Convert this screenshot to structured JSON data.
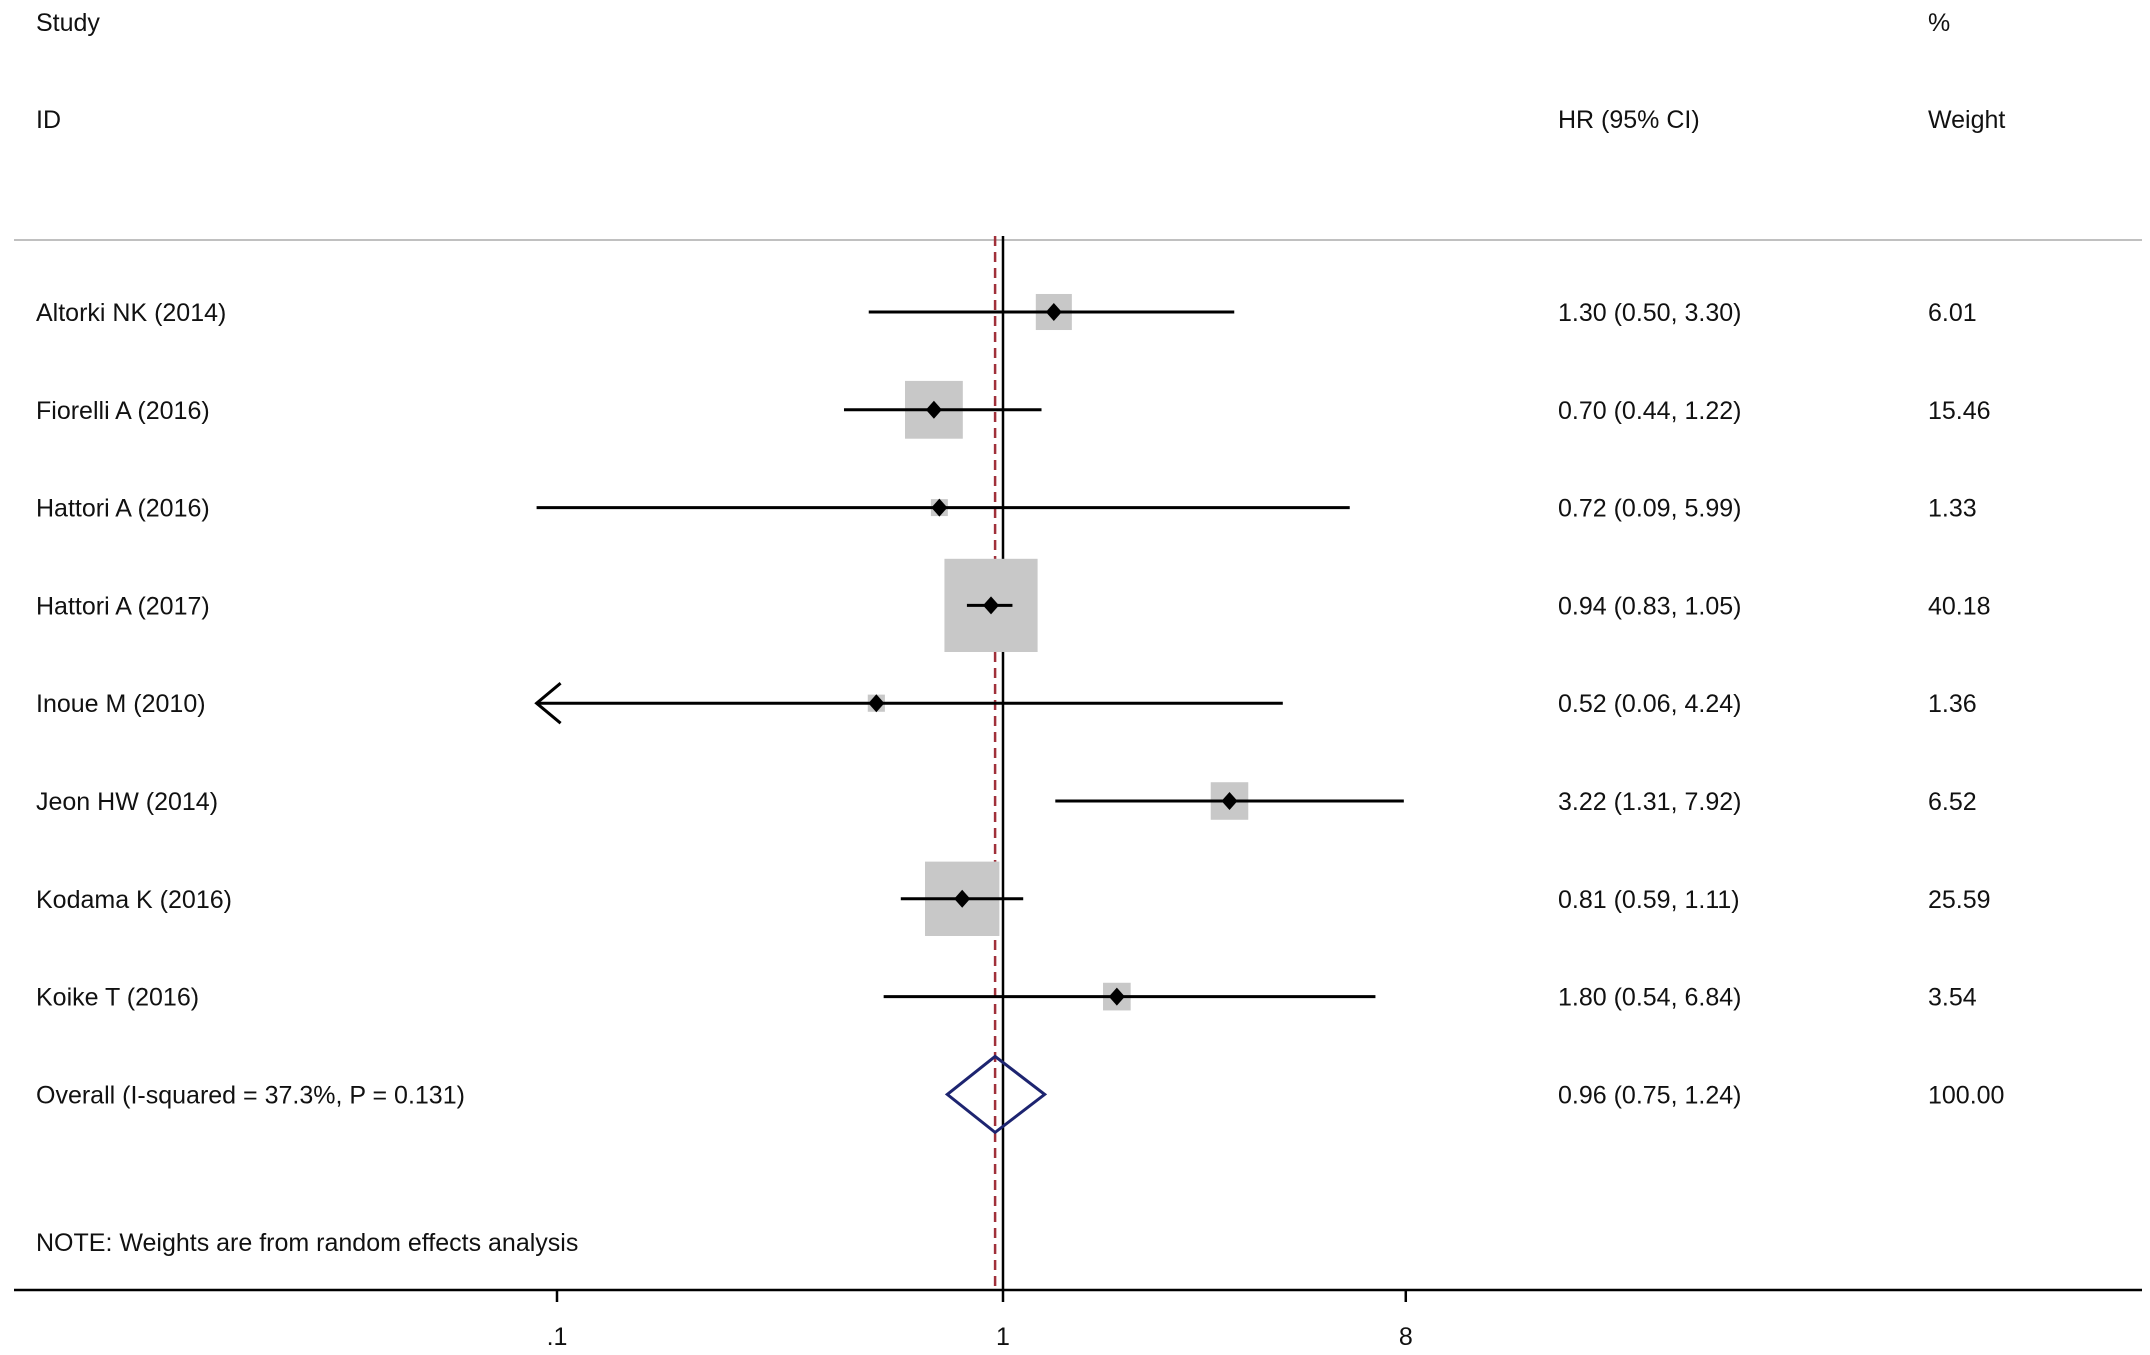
{
  "colors": {
    "text": "#111111",
    "ci_line": "#000000",
    "weight_box": "#c8c8c8",
    "point": "#000000",
    "null_line": "#000000",
    "overall_ref_line": "#a0303a",
    "diamond": "#1d2470",
    "separator": "#c0c0c0"
  },
  "chart_data": {
    "type": "forest",
    "x_scale": "log",
    "null_value": 1,
    "x_ticks": [
      ".1",
      "1",
      "8"
    ],
    "x_tick_values": [
      0.1,
      1,
      8
    ],
    "xlim": [
      0.09,
      8
    ],
    "header": {
      "col_study_line1": "Study",
      "col_study_line2": "ID",
      "col_hr": "HR (95% CI)",
      "col_weight_line1": "%",
      "col_weight_line2": "Weight"
    },
    "studies": [
      {
        "label": "Altorki NK (2014)",
        "hr": 1.3,
        "lo": 0.5,
        "hi": 3.3,
        "hr_text": "1.30 (0.50, 3.30)",
        "weight": 6.01,
        "weight_text": "6.01"
      },
      {
        "label": "Fiorelli A (2016)",
        "hr": 0.7,
        "lo": 0.44,
        "hi": 1.22,
        "hr_text": "0.70 (0.44, 1.22)",
        "weight": 15.46,
        "weight_text": "15.46"
      },
      {
        "label": "Hattori A (2016)",
        "hr": 0.72,
        "lo": 0.09,
        "hi": 5.99,
        "hr_text": "0.72 (0.09, 5.99)",
        "weight": 1.33,
        "weight_text": "1.33"
      },
      {
        "label": "Hattori A (2017)",
        "hr": 0.94,
        "lo": 0.83,
        "hi": 1.05,
        "hr_text": "0.94 (0.83, 1.05)",
        "weight": 40.18,
        "weight_text": "40.18"
      },
      {
        "label": "Inoue M  (2010)",
        "hr": 0.52,
        "lo": 0.06,
        "hi": 4.24,
        "hr_text": "0.52 (0.06, 4.24)",
        "weight": 1.36,
        "weight_text": "1.36",
        "lower_truncated": true
      },
      {
        "label": "Jeon HW  (2014)",
        "hr": 3.22,
        "lo": 1.31,
        "hi": 7.92,
        "hr_text": "3.22 (1.31, 7.92)",
        "weight": 6.52,
        "weight_text": "6.52"
      },
      {
        "label": "Kodama K  (2016)",
        "hr": 0.81,
        "lo": 0.59,
        "hi": 1.11,
        "hr_text": "0.81 (0.59, 1.11)",
        "weight": 25.59,
        "weight_text": "25.59"
      },
      {
        "label": "Koike T  (2016)",
        "hr": 1.8,
        "lo": 0.54,
        "hi": 6.84,
        "hr_text": "1.80 (0.54, 6.84)",
        "weight": 3.54,
        "weight_text": "3.54"
      }
    ],
    "overall": {
      "label": "Overall  (I-squared = 37.3%, P = 0.131)",
      "hr": 0.96,
      "lo": 0.75,
      "hi": 1.24,
      "hr_text": "0.96 (0.75, 1.24)",
      "weight_text": "100.00"
    },
    "note": "NOTE: Weights are from random effects analysis"
  }
}
